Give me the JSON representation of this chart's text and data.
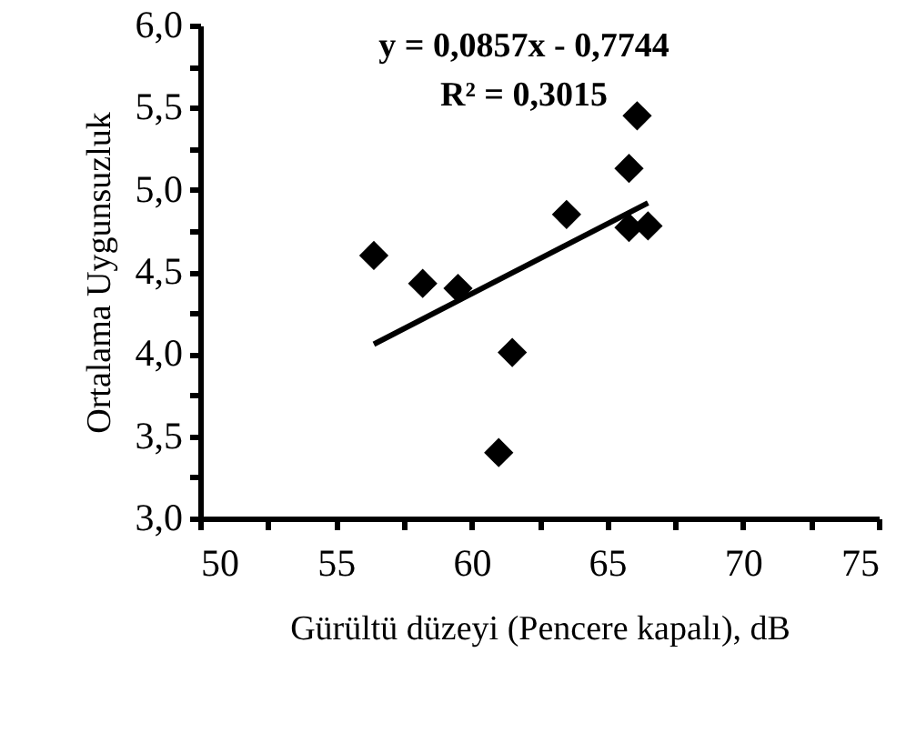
{
  "chart_data": {
    "type": "scatter",
    "xlabel": "Gürültü düzeyi (Pencere kapalı), dB",
    "ylabel": "Ortalama Uygunsuzluk",
    "annotations": [
      "y = 0,0857x - 0,7744",
      "R² = 0,3015"
    ],
    "series": [
      {
        "type": "scatter",
        "color": "#000000",
        "marker": "diamond",
        "x": [
          56.4,
          58.2,
          59.5,
          61.0,
          61.5,
          63.5,
          65.8,
          65.8,
          66.1,
          66.5
        ],
        "values": [
          4.6,
          4.43,
          4.4,
          3.4,
          4.01,
          4.85,
          5.13,
          4.77,
          5.45,
          4.78
        ]
      },
      {
        "type": "line",
        "color": "#000000",
        "marker": "none",
        "line_style": "solid",
        "x": [
          56.4,
          66.5
        ],
        "values": [
          4.06,
          4.92
        ]
      }
    ],
    "xlim": [
      50,
      75
    ],
    "xticks": [
      50,
      {
        "value": 52.5,
        "label": null
      },
      55,
      {
        "value": 57.5,
        "label": null
      },
      60,
      {
        "value": 62.5,
        "label": null
      },
      65,
      {
        "value": 67.5,
        "label": null
      },
      70,
      {
        "value": 72.5,
        "label": null
      },
      75
    ],
    "ylim": [
      3,
      6
    ],
    "yticks": [
      {
        "value": 3,
        "label": "3,0"
      },
      {
        "value": 3.25,
        "label": null
      },
      {
        "value": 3.5,
        "label": "3,5"
      },
      {
        "value": 3.75,
        "label": null
      },
      {
        "value": 4,
        "label": "4,0"
      },
      {
        "value": 4.25,
        "label": null
      },
      {
        "value": 4.5,
        "label": "4,5"
      },
      {
        "value": 4.75,
        "label": null
      },
      {
        "value": 5,
        "label": "5,0"
      },
      {
        "value": 5.25,
        "label": null
      },
      {
        "value": 5.5,
        "label": "5,5"
      },
      {
        "value": 5.75,
        "label": null
      },
      {
        "value": 6,
        "label": "6,0"
      }
    ],
    "grid": false
  }
}
